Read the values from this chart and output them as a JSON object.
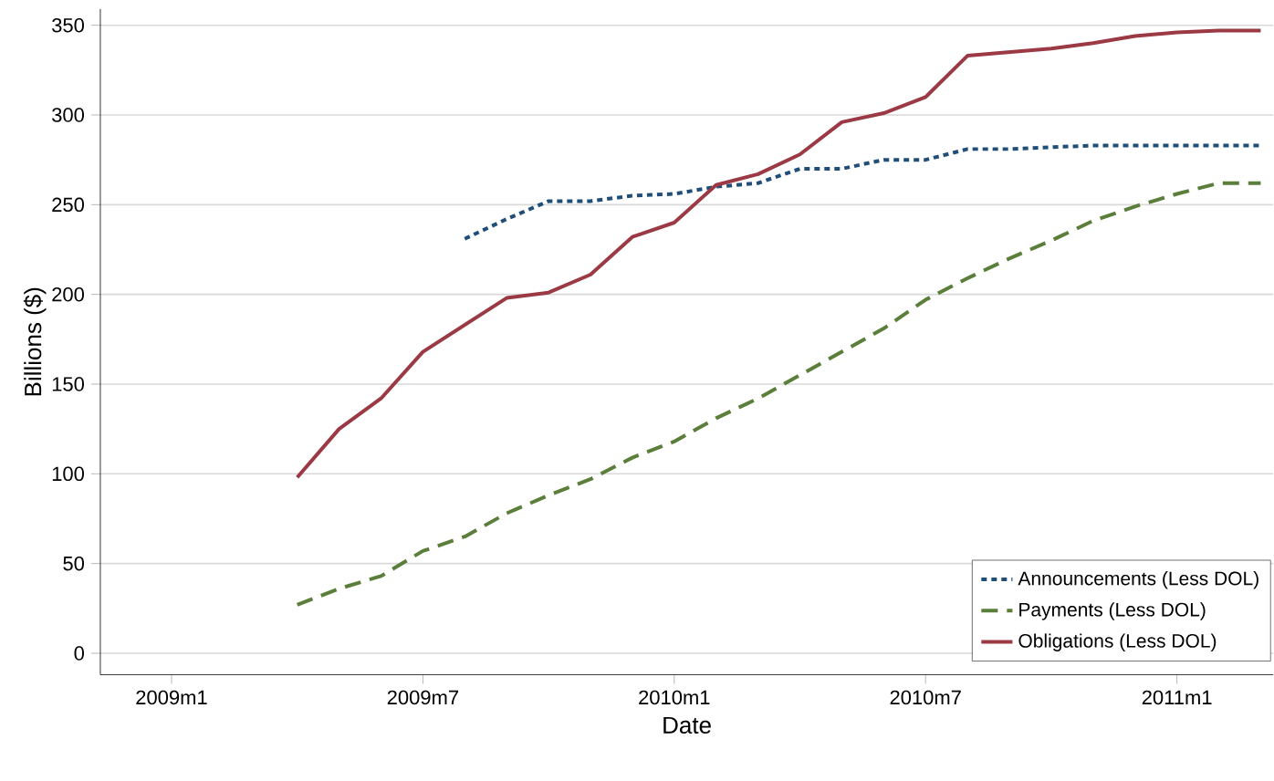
{
  "chart_data": {
    "type": "line",
    "xlabel": "Date",
    "ylabel": "Billions ($)",
    "x": [
      "2009-04",
      "2009-05",
      "2009-06",
      "2009-07",
      "2009-08",
      "2009-09",
      "2009-10",
      "2009-11",
      "2009-12",
      "2010-01",
      "2010-02",
      "2010-03",
      "2010-04",
      "2010-05",
      "2010-06",
      "2010-07",
      "2010-08",
      "2010-09",
      "2010-10",
      "2010-11",
      "2010-12",
      "2011-01",
      "2011-02",
      "2011-03"
    ],
    "series": [
      {
        "name": "Announcements (Less DOL)",
        "color": "#1f4e79",
        "line_style": "dotted",
        "values": [
          null,
          null,
          null,
          null,
          231,
          242,
          252,
          252,
          255,
          256,
          260,
          262,
          270,
          270,
          275,
          275,
          281,
          281,
          282,
          283,
          283,
          283,
          283,
          283
        ]
      },
      {
        "name": "Payments (Less DOL)",
        "color": "#5b7f3a",
        "line_style": "dashed",
        "values": [
          27,
          36,
          43,
          57,
          65,
          78,
          88,
          97,
          109,
          118,
          131,
          142,
          155,
          168,
          181,
          197,
          209,
          220,
          230,
          241,
          249,
          256,
          262,
          262
        ]
      },
      {
        "name": "Obligations (Less DOL)",
        "color": "#9b3a45",
        "line_style": "solid",
        "values": [
          98,
          125,
          142,
          168,
          183,
          198,
          201,
          211,
          232,
          240,
          261,
          267,
          278,
          296,
          301,
          310,
          333,
          335,
          337,
          340,
          344,
          346,
          347,
          347
        ]
      }
    ],
    "xlim": [
      "2008-11-10",
      "2011-03-10"
    ],
    "xticks": [
      {
        "value": "2009-01",
        "label": "2009m1"
      },
      {
        "value": "2009-07",
        "label": "2009m7"
      },
      {
        "value": "2010-01",
        "label": "2010m1"
      },
      {
        "value": "2010-07",
        "label": "2010m7"
      },
      {
        "value": "2011-01",
        "label": "2011m1"
      }
    ],
    "ylim": [
      -12,
      359
    ],
    "yticks": [
      0,
      50,
      100,
      150,
      200,
      250,
      300,
      350
    ],
    "grid": "y",
    "legend": "bottom right"
  }
}
